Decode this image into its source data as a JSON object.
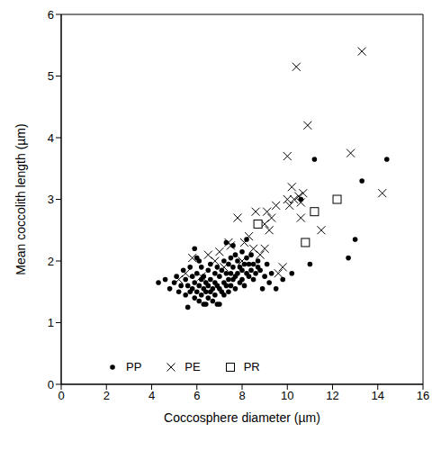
{
  "chart_data": {
    "type": "scatter",
    "x_label": "Coccosphere diameter (µm)",
    "y_label": "Mean coccolith length (µm)",
    "xlim": [
      0,
      16
    ],
    "xticks": [
      0,
      2,
      4,
      6,
      8,
      10,
      12,
      14,
      16
    ],
    "ylim": [
      0,
      6
    ],
    "yticks": [
      0,
      1,
      2,
      3,
      4,
      5,
      6
    ],
    "grid": false,
    "legend": "lower center",
    "series": [
      {
        "name": "PP",
        "color": "#000000",
        "marker": "circle",
        "x": [
          4.3,
          4.6,
          4.8,
          5.0,
          5.1,
          5.2,
          5.3,
          5.4,
          5.5,
          5.5,
          5.6,
          5.7,
          5.7,
          5.8,
          5.8,
          5.9,
          5.9,
          6.0,
          6.0,
          6.0,
          6.1,
          6.1,
          6.2,
          6.2,
          6.2,
          6.3,
          6.3,
          6.4,
          6.4,
          6.4,
          6.5,
          6.5,
          6.5,
          6.6,
          6.6,
          6.6,
          6.7,
          6.7,
          6.8,
          6.8,
          6.8,
          6.9,
          6.9,
          7.0,
          7.0,
          7.0,
          7.1,
          7.1,
          7.2,
          7.2,
          7.2,
          7.3,
          7.3,
          7.4,
          7.4,
          7.4,
          7.5,
          7.5,
          7.5,
          7.6,
          7.6,
          7.7,
          7.7,
          7.7,
          7.8,
          7.8,
          7.9,
          7.9,
          8.0,
          8.0,
          8.0,
          8.1,
          8.1,
          8.2,
          8.2,
          8.3,
          8.3,
          8.4,
          8.4,
          8.5,
          8.5,
          8.6,
          8.7,
          8.7,
          8.8,
          8.9,
          9.0,
          9.1,
          9.2,
          9.3,
          9.5,
          9.8,
          5.6,
          6.3,
          6.9,
          7.3,
          6.1,
          5.9,
          7.6,
          8.2,
          10.2,
          10.6,
          11.0,
          11.2,
          12.7,
          13.0,
          13.3,
          14.4
        ],
        "y": [
          1.65,
          1.7,
          1.55,
          1.65,
          1.75,
          1.5,
          1.6,
          1.85,
          1.45,
          1.7,
          1.6,
          1.9,
          1.5,
          1.55,
          1.75,
          1.4,
          1.65,
          1.5,
          1.8,
          2.05,
          1.35,
          1.6,
          1.45,
          1.7,
          1.9,
          1.55,
          1.75,
          1.3,
          1.5,
          1.65,
          1.4,
          1.6,
          1.85,
          1.5,
          1.7,
          1.95,
          1.35,
          1.55,
          1.45,
          1.65,
          1.8,
          1.6,
          1.9,
          1.3,
          1.55,
          1.75,
          1.5,
          1.85,
          1.45,
          1.65,
          2.0,
          1.6,
          1.8,
          1.5,
          1.7,
          1.95,
          1.6,
          1.8,
          2.05,
          1.7,
          1.9,
          1.55,
          1.75,
          2.1,
          1.8,
          2.0,
          1.65,
          1.9,
          1.7,
          1.85,
          2.15,
          1.6,
          1.95,
          1.8,
          2.05,
          1.75,
          1.95,
          1.85,
          2.1,
          1.7,
          1.95,
          1.8,
          1.9,
          2.0,
          1.85,
          1.55,
          1.75,
          1.95,
          1.65,
          1.8,
          1.55,
          1.7,
          1.25,
          1.3,
          1.3,
          2.3,
          2.0,
          2.2,
          2.25,
          2.35,
          1.8,
          3.0,
          1.95,
          3.65,
          2.05,
          2.35,
          3.3,
          3.65
        ]
      },
      {
        "name": "PE",
        "color": "#000000",
        "marker": "x",
        "x": [
          5.2,
          5.5,
          5.8,
          6.2,
          6.5,
          6.8,
          7.0,
          7.2,
          7.4,
          7.5,
          7.8,
          8.0,
          8.1,
          8.3,
          8.5,
          8.6,
          8.8,
          9.0,
          9.0,
          9.1,
          9.2,
          9.3,
          9.5,
          9.6,
          9.8,
          10.0,
          10.0,
          10.1,
          10.2,
          10.3,
          10.4,
          10.5,
          10.6,
          10.6,
          10.7,
          10.9,
          11.5,
          12.8,
          13.3,
          14.2
        ],
        "y": [
          1.7,
          1.8,
          2.05,
          1.75,
          2.1,
          2.0,
          2.15,
          1.9,
          2.3,
          2.25,
          2.7,
          2.0,
          2.3,
          2.4,
          2.2,
          2.8,
          2.1,
          2.6,
          2.2,
          2.8,
          2.5,
          2.7,
          2.9,
          1.8,
          1.9,
          3.7,
          3.0,
          2.9,
          3.2,
          3.0,
          5.15,
          3.05,
          2.95,
          2.7,
          3.1,
          4.2,
          2.5,
          3.75,
          5.4,
          3.1
        ]
      },
      {
        "name": "PR",
        "color": "#000000",
        "marker": "square",
        "x": [
          8.7,
          10.8,
          11.2,
          12.2
        ],
        "y": [
          2.6,
          2.3,
          2.8,
          3.0
        ]
      }
    ]
  }
}
